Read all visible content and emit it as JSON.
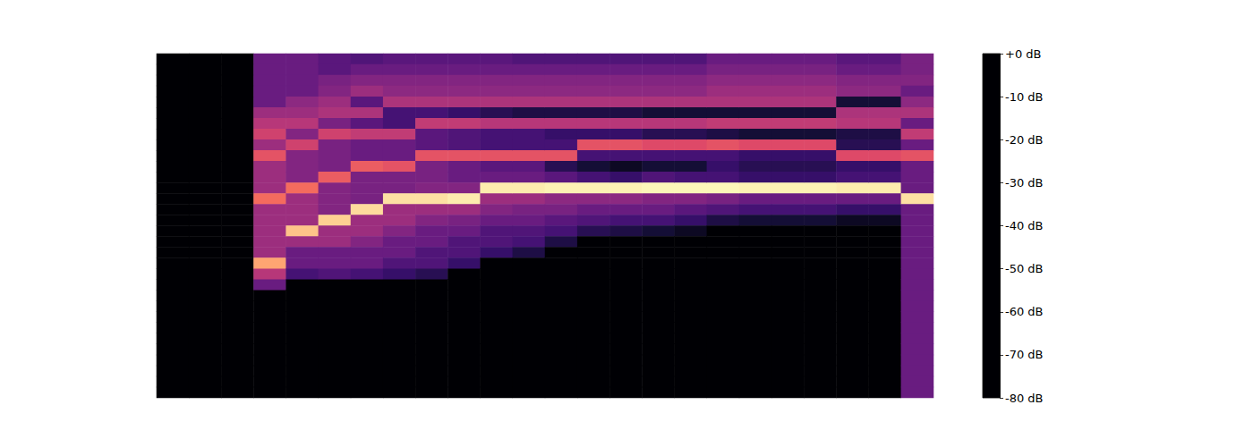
{
  "chart_data": {
    "type": "heatmap",
    "tick_labels": false,
    "cells": [
      [
        -80,
        -80,
        -80,
        -80,
        -80,
        -80,
        -80,
        -80,
        -80,
        -80,
        -80,
        -80,
        -80,
        -80,
        -80,
        -80,
        -80,
        -80,
        -80,
        -80,
        -80,
        -80,
        -80,
        -80,
        -80,
        -80,
        -80,
        -80,
        -80,
        -80,
        -80,
        -80
      ],
      [
        -80,
        -80,
        -80,
        -80,
        -80,
        -80,
        -80,
        -80,
        -80,
        -80,
        -80,
        -80,
        -80,
        -80,
        -80,
        -80,
        -80,
        -80,
        -80,
        -80,
        -80,
        -80,
        -80,
        -80,
        -80,
        -80,
        -80,
        -80,
        -80,
        -80,
        -80,
        -80
      ],
      [
        -80,
        -80,
        -80,
        -80,
        -80,
        -80,
        -80,
        -80,
        -80,
        -80,
        -80,
        -80,
        -80,
        -80,
        -80,
        -80,
        -80,
        -80,
        -80,
        -80,
        -80,
        -80,
        -80,
        -80,
        -80,
        -80,
        -80,
        -80,
        -80,
        -80,
        -80,
        -80
      ],
      [
        -55,
        -55,
        -55,
        -55,
        -55,
        -45,
        -40,
        -35,
        -45,
        -30,
        -45,
        -45,
        -45,
        -25,
        -45,
        -45,
        -45,
        -45,
        -45,
        -15,
        -40,
        -55,
        -80,
        -80,
        -80,
        -80,
        -80,
        -80,
        -80,
        -80,
        -80,
        -80
      ],
      [
        -55,
        -55,
        -55,
        -55,
        -48,
        -45,
        -40,
        -50,
        -35,
        -50,
        -50,
        -50,
        -25,
        -45,
        -45,
        -45,
        -10,
        -45,
        -55,
        -55,
        -62,
        -80,
        -80,
        -80,
        -80,
        -80,
        -80,
        -80,
        -80,
        -80,
        -80,
        -80
      ],
      [
        -58,
        -58,
        -52,
        -50,
        -45,
        -42,
        -52,
        -35,
        -52,
        -52,
        -52,
        -28,
        -50,
        -50,
        -50,
        -8,
        -45,
        -45,
        -55,
        -55,
        -60,
        -80,
        -80,
        -80,
        -80,
        -80,
        -80,
        -80,
        -80,
        -80,
        -80,
        -80
      ],
      [
        -60,
        -55,
        -50,
        -45,
        -58,
        -42,
        -58,
        -38,
        -55,
        -55,
        -28,
        -52,
        -52,
        -52,
        -6,
        -45,
        -45,
        -50,
        -55,
        -55,
        -62,
        -80,
        -80,
        -80,
        -80,
        -80,
        -80,
        -80,
        -80,
        -80,
        -80,
        -80
      ],
      [
        -58,
        -55,
        -50,
        -48,
        -42,
        -62,
        -62,
        -38,
        -55,
        -55,
        -30,
        -52,
        -52,
        -5,
        -45,
        -45,
        -50,
        -55,
        -55,
        -60,
        -65,
        -80,
        -80,
        -80,
        -80,
        -80,
        -80,
        -80,
        -80,
        -80,
        -80,
        -80
      ],
      [
        -58,
        -55,
        -50,
        -48,
        -42,
        -62,
        -38,
        -58,
        -58,
        -30,
        -52,
        -52,
        -50,
        -5,
        -45,
        -50,
        -55,
        -55,
        -60,
        -60,
        -68,
        -80,
        -80,
        -80,
        -80,
        -80,
        -80,
        -80,
        -80,
        -80,
        -80,
        -80
      ],
      [
        -58,
        -55,
        -50,
        -48,
        -42,
        -65,
        -38,
        -60,
        -60,
        -30,
        -55,
        -55,
        -50,
        -3,
        -45,
        -52,
        -55,
        -60,
        -60,
        -65,
        -80,
        -80,
        -80,
        -80,
        -80,
        -80,
        -80,
        -80,
        -80,
        -80,
        -80,
        -80
      ],
      [
        -58,
        -55,
        -50,
        -48,
        -42,
        -68,
        -40,
        -62,
        -62,
        -30,
        -58,
        -55,
        -3,
        -45,
        -50,
        -55,
        -60,
        -60,
        -65,
        -80,
        -80,
        -80,
        -80,
        -80,
        -80,
        -80,
        -80,
        -80,
        -80,
        -80,
        -80,
        -80
      ],
      [
        -60,
        -55,
        -50,
        -48,
        -42,
        -70,
        -40,
        -62,
        -62,
        -30,
        -58,
        -55,
        -3,
        -45,
        -52,
        -55,
        -60,
        -62,
        -70,
        -80,
        -80,
        -80,
        -80,
        -80,
        -80,
        -80,
        -80,
        -80,
        -80,
        -80,
        -80,
        -80
      ],
      [
        -60,
        -55,
        -50,
        -48,
        -42,
        -70,
        -40,
        -65,
        -62,
        -30,
        -68,
        -58,
        -2,
        -48,
        -52,
        -58,
        -62,
        -70,
        -80,
        -80,
        -80,
        -80,
        -80,
        -80,
        -80,
        -80,
        -80,
        -80,
        -80,
        -80,
        -80,
        -80
      ],
      [
        -60,
        -55,
        -50,
        -48,
        -42,
        -70,
        -40,
        -65,
        -30,
        -62,
        -72,
        -62,
        -2,
        -48,
        -55,
        -60,
        -68,
        -80,
        -80,
        -80,
        -80,
        -80,
        -80,
        -80,
        -80,
        -80,
        -80,
        -80,
        -80,
        -80,
        -80,
        -80
      ],
      [
        -60,
        -55,
        -50,
        -48,
        -42,
        -70,
        -40,
        -65,
        -30,
        -62,
        -75,
        -65,
        -2,
        -48,
        -55,
        -62,
        -70,
        -80,
        -80,
        -80,
        -80,
        -80,
        -80,
        -80,
        -80,
        -80,
        -80,
        -80,
        -80,
        -80,
        -80,
        -80
      ],
      [
        -60,
        -55,
        -50,
        -48,
        -42,
        -72,
        -40,
        -68,
        -32,
        -62,
        -72,
        -60,
        -1,
        -50,
        -55,
        -62,
        -72,
        -80,
        -80,
        -80,
        -80,
        -80,
        -80,
        -80,
        -80,
        -80,
        -80,
        -80,
        -80,
        -80,
        -80,
        -80
      ],
      [
        -60,
        -55,
        -50,
        -48,
        -42,
        -72,
        -40,
        -68,
        -32,
        -62,
        -72,
        -62,
        -1,
        -50,
        -58,
        -65,
        -75,
        -80,
        -80,
        -80,
        -80,
        -80,
        -80,
        -80,
        -80,
        -80,
        -80,
        -80,
        -80,
        -80,
        -80,
        -80
      ],
      [
        -55,
        -52,
        -48,
        -45,
        -42,
        -72,
        -38,
        -70,
        -30,
        -62,
        -65,
        -62,
        -1,
        -52,
        -60,
        -70,
        -80,
        -80,
        -80,
        -80,
        -80,
        -80,
        -80,
        -80,
        -80,
        -80,
        -80,
        -80,
        -80,
        -80,
        -80,
        -80
      ],
      [
        -55,
        -52,
        -48,
        -45,
        -42,
        -72,
        -38,
        -72,
        -32,
        -65,
        -68,
        -65,
        -2,
        -55,
        -62,
        -72,
        -80,
        -80,
        -80,
        -80,
        -80,
        -80,
        -80,
        -80,
        -80,
        -80,
        -80,
        -80,
        -80,
        -80,
        -80,
        -80
      ],
      [
        -55,
        -52,
        -48,
        -45,
        -42,
        -72,
        -38,
        -72,
        -32,
        -65,
        -68,
        -65,
        -2,
        -55,
        -62,
        -72,
        -80,
        -80,
        -80,
        -80,
        -80,
        -80,
        -80,
        -80,
        -80,
        -80,
        -80,
        -80,
        -80,
        -80,
        -80,
        -80
      ],
      [
        -55,
        -52,
        -48,
        -45,
        -42,
        -72,
        -38,
        -72,
        -32,
        -65,
        -68,
        -65,
        -2,
        -55,
        -62,
        -72,
        -80,
        -80,
        -80,
        -80,
        -80,
        -80,
        -80,
        -80,
        -80,
        -80,
        -80,
        -80,
        -80,
        -80,
        -80,
        -80
      ],
      [
        -58,
        -55,
        -50,
        -48,
        -72,
        -42,
        -40,
        -70,
        -68,
        -32,
        -65,
        -62,
        -3,
        -55,
        -65,
        -75,
        -80,
        -80,
        -80,
        -80,
        -80,
        -80,
        -80,
        -80,
        -80,
        -80,
        -80,
        -80,
        -80,
        -80,
        -80,
        -80
      ],
      [
        -58,
        -55,
        -50,
        -48,
        -72,
        -42,
        -40,
        -70,
        -68,
        -32,
        -65,
        -62,
        -3,
        -55,
        -65,
        -75,
        -80,
        -80,
        -80,
        -80,
        -80,
        -80,
        -80,
        -80,
        -80,
        -80,
        -80,
        -80,
        -80,
        -80,
        -80,
        -80
      ],
      [
        -52,
        -52,
        -50,
        -55,
        -48,
        -42,
        -55,
        -38,
        -55,
        -30,
        -55,
        -55,
        -55,
        -5,
        -55,
        -55,
        -55,
        -55,
        -55,
        -55,
        -55,
        -55,
        -55,
        -55,
        -55,
        -55,
        -55,
        -55,
        -55,
        -55,
        -55,
        -55
      ]
    ],
    "colorbar": {
      "range": [
        -80,
        0
      ],
      "ticks": [
        {
          "value": -80,
          "label": "-80 dB"
        },
        {
          "value": -70,
          "label": "-70 dB"
        },
        {
          "value": -60,
          "label": "-60 dB"
        },
        {
          "value": -50,
          "label": "-50 dB"
        },
        {
          "value": -40,
          "label": "-40 dB"
        },
        {
          "value": -30,
          "label": "-30 dB"
        },
        {
          "value": -20,
          "label": "-20 dB"
        },
        {
          "value": -10,
          "label": "-10 dB"
        },
        {
          "value": 0,
          "label": "+0 dB"
        }
      ]
    }
  }
}
